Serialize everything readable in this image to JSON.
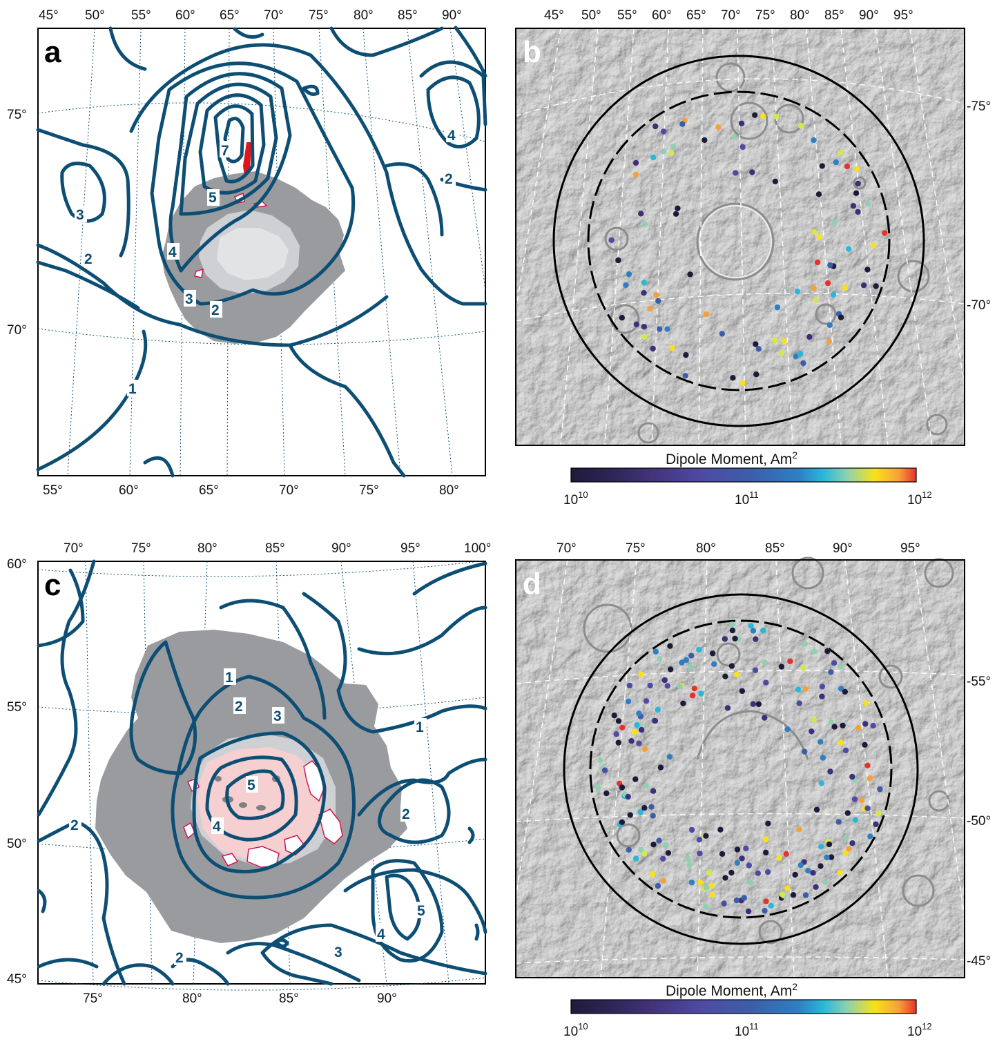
{
  "panels": {
    "a": {
      "label": "a",
      "top_ticks": [
        "45°",
        "50°",
        "55°",
        "60°",
        "65°",
        "70°",
        "75°",
        "80°",
        "85°",
        "90°"
      ],
      "bottom_ticks": [
        "55°",
        "60°",
        "65°",
        "70°",
        "75°",
        "80°"
      ],
      "left_ticks": [
        "75°",
        "70°"
      ],
      "contour_labels": [
        "7",
        "5",
        "4",
        "3",
        "2",
        "3",
        "2",
        "4",
        "2",
        "1"
      ]
    },
    "b": {
      "label": "b",
      "top_ticks": [
        "45°",
        "50°",
        "55°",
        "60°",
        "65°",
        "70°",
        "75°",
        "80°",
        "85°",
        "90°",
        "95°"
      ],
      "right_ticks": [
        "-75°",
        "-70°"
      ]
    },
    "c": {
      "label": "c",
      "top_ticks": [
        "70°",
        "75°",
        "80°",
        "85°",
        "90°",
        "95°",
        "100°"
      ],
      "bottom_ticks": [
        "75°",
        "80°",
        "85°",
        "90°"
      ],
      "left_ticks": [
        "60°",
        "55°",
        "50°",
        "45°"
      ],
      "contour_labels": [
        "1",
        "2",
        "3",
        "1",
        "5",
        "4",
        "2",
        "2",
        "5",
        "4",
        "3",
        "2"
      ]
    },
    "d": {
      "label": "d",
      "top_ticks": [
        "70°",
        "75°",
        "80°",
        "85°",
        "90°",
        "95°"
      ],
      "right_ticks": [
        "-55°",
        "-50°",
        "-45°"
      ]
    }
  },
  "colorbar": {
    "title": "Dipole Moment, Am",
    "title_superscript": "2",
    "tick_labels": [
      "10",
      "10",
      "10"
    ],
    "tick_exponents": [
      "10",
      "11",
      "12"
    ],
    "range": [
      10000000000,
      1000000000000
    ],
    "scale": "log",
    "colors": [
      "#1e1b3a",
      "#3d2f7a",
      "#4e4ba2",
      "#3c5ea8",
      "#2f7fc2",
      "#2ab7d8",
      "#8fd0b0",
      "#d8e64a",
      "#f7e21a",
      "#f5a13a",
      "#e5322c"
    ]
  },
  "colors": {
    "contour": "#0d4e74",
    "dark_gray_region": "#9a9b9f",
    "light_gray_region": "#cfd0d3",
    "pink_region": "#f6cfd1",
    "outline_red": "#d4144f"
  }
}
